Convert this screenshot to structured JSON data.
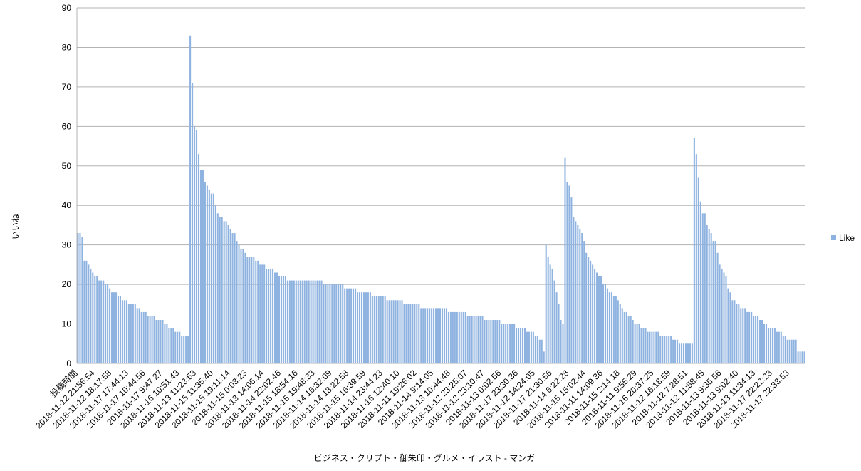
{
  "chart_data": {
    "type": "bar",
    "x_label": "ビジネス・クリプト・御朱印・グルメ・イラスト - マンガ",
    "y_label": "いいね",
    "legend": "right",
    "grid": true,
    "ylim": [
      0,
      90
    ],
    "yticks": [
      0,
      10,
      20,
      30,
      40,
      50,
      60,
      70,
      80,
      90
    ],
    "categories": [
      "投稿時間",
      null,
      null,
      null,
      null,
      null,
      null,
      null,
      "2018-11-12 21:56:54",
      null,
      null,
      null,
      null,
      null,
      null,
      null,
      "2018-11-12 18:17:58",
      null,
      null,
      null,
      null,
      null,
      null,
      null,
      "2018-11-17 17:44:13",
      null,
      null,
      null,
      null,
      null,
      null,
      null,
      "2018-11-17 10:44:56",
      null,
      null,
      null,
      null,
      null,
      null,
      null,
      "2018-11-17 9:47:27",
      null,
      null,
      null,
      null,
      null,
      null,
      null,
      "2018-11-16 10:51:43",
      null,
      null,
      null,
      null,
      null,
      null,
      null,
      "2018-11-13 11:23:53",
      null,
      null,
      null,
      null,
      null,
      null,
      null,
      "2018-11-15 11:35:40",
      null,
      null,
      null,
      null,
      null,
      null,
      null,
      "2018-11-15 19:11:14",
      null,
      null,
      null,
      null,
      null,
      null,
      null,
      "2018-11-15 0:03:23",
      null,
      null,
      null,
      null,
      null,
      null,
      null,
      "2018-11-13 14:06:14",
      null,
      null,
      null,
      null,
      null,
      null,
      null,
      "2018-11-14 22:02:46",
      null,
      null,
      null,
      null,
      null,
      null,
      null,
      "2018-11-15 18:54:16",
      null,
      null,
      null,
      null,
      null,
      null,
      null,
      "2018-11-15 19:48:33",
      null,
      null,
      null,
      null,
      null,
      null,
      null,
      "2018-11-14 16:32:09",
      null,
      null,
      null,
      null,
      null,
      null,
      null,
      "2018-11-14 18:22:58",
      null,
      null,
      null,
      null,
      null,
      null,
      null,
      "2018-11-15 16:39:59",
      null,
      null,
      null,
      null,
      null,
      null,
      null,
      "2018-11-14 23:44:23",
      null,
      null,
      null,
      null,
      null,
      null,
      null,
      "2018-11-16 12:40:10",
      null,
      null,
      null,
      null,
      null,
      null,
      null,
      "2018-11-11 19:26:02",
      null,
      null,
      null,
      null,
      null,
      null,
      null,
      "2018-11-14 9:14:05",
      null,
      null,
      null,
      null,
      null,
      null,
      null,
      "2018-11-13 10:44:48",
      null,
      null,
      null,
      null,
      null,
      null,
      null,
      "2018-11-12 23:25:07",
      null,
      null,
      null,
      null,
      null,
      null,
      null,
      "2018-11-12 23:10:47",
      null,
      null,
      null,
      null,
      null,
      null,
      null,
      "2018-11-13 0:02:56",
      null,
      null,
      null,
      null,
      null,
      null,
      null,
      "2018-11-17 23:30:36",
      null,
      null,
      null,
      null,
      null,
      null,
      null,
      "2018-11-12 14:24:05",
      null,
      null,
      null,
      null,
      null,
      null,
      null,
      "2018-11-17 21:30:56",
      null,
      null,
      null,
      null,
      null,
      null,
      null,
      "2018-11-14 6:22:28",
      null,
      null,
      null,
      null,
      null,
      null,
      null,
      "2018-11-15 15:02:44",
      null,
      null,
      null,
      null,
      null,
      null,
      null,
      "2018-11-11 14:09:36",
      null,
      null,
      null,
      null,
      null,
      null,
      null,
      "2018-11-15 2:14:18",
      null,
      null,
      null,
      null,
      null,
      null,
      null,
      "2018-11-11 9:55:29",
      null,
      null,
      null,
      null,
      null,
      null,
      null,
      "2018-11-16 20:37:25",
      null,
      null,
      null,
      null,
      null,
      null,
      null,
      "2018-11-12 16:18:59",
      null,
      null,
      null,
      null,
      null,
      null,
      null,
      "2018-11-12 7:28:51",
      null,
      null,
      null,
      null,
      null,
      null,
      null,
      "2018-11-12 11:58:45",
      null,
      null,
      null,
      null,
      null,
      null,
      null,
      "2018-11-13 9:35:56",
      null,
      null,
      null,
      null,
      null,
      null,
      null,
      "2018-11-13 9:02:40",
      null,
      null,
      null,
      null,
      null,
      null,
      null,
      "2018-11-13 11:34:13",
      null,
      null,
      null,
      null,
      null,
      null,
      null,
      "2018-11-17 22:22:23",
      null,
      null,
      null,
      null,
      null,
      null,
      null,
      "2018-11-17 22:33:53",
      null,
      null,
      null,
      null,
      null,
      null,
      null
    ],
    "series": [
      {
        "name": "Like",
        "color": "#8fb3e0",
        "values": [
          33,
          33,
          32,
          26,
          26,
          25,
          24,
          23,
          22,
          22,
          21,
          21,
          21,
          20,
          20,
          19,
          18,
          18,
          18,
          17,
          17,
          16,
          16,
          16,
          15,
          15,
          15,
          15,
          14,
          14,
          13,
          13,
          13,
          12,
          12,
          12,
          12,
          11,
          11,
          11,
          11,
          10,
          10,
          9,
          9,
          9,
          8,
          8,
          8,
          7,
          7,
          7,
          7,
          83,
          71,
          60,
          59,
          53,
          49,
          49,
          46,
          45,
          44,
          43,
          43,
          40,
          38,
          37,
          37,
          36,
          36,
          35,
          34,
          33,
          33,
          31,
          30,
          29,
          29,
          28,
          27,
          27,
          27,
          27,
          26,
          26,
          25,
          25,
          25,
          24,
          24,
          24,
          24,
          23,
          23,
          22,
          22,
          22,
          22,
          21,
          21,
          21,
          21,
          21,
          21,
          21,
          21,
          21,
          21,
          21,
          21,
          21,
          21,
          21,
          21,
          21,
          20,
          20,
          20,
          20,
          20,
          20,
          20,
          20,
          20,
          20,
          19,
          19,
          19,
          19,
          19,
          19,
          18,
          18,
          18,
          18,
          18,
          18,
          18,
          17,
          17,
          17,
          17,
          17,
          17,
          17,
          16,
          16,
          16,
          16,
          16,
          16,
          16,
          16,
          15,
          15,
          15,
          15,
          15,
          15,
          15,
          15,
          14,
          14,
          14,
          14,
          14,
          14,
          14,
          14,
          14,
          14,
          14,
          14,
          14,
          13,
          13,
          13,
          13,
          13,
          13,
          13,
          13,
          13,
          12,
          12,
          12,
          12,
          12,
          12,
          12,
          12,
          11,
          11,
          11,
          11,
          11,
          11,
          11,
          11,
          10,
          10,
          10,
          10,
          10,
          10,
          10,
          9,
          9,
          9,
          9,
          9,
          8,
          8,
          8,
          8,
          7,
          7,
          6,
          6,
          3,
          30,
          27,
          25,
          24,
          21,
          18,
          15,
          11,
          10,
          52,
          46,
          45,
          42,
          37,
          36,
          35,
          34,
          33,
          31,
          28,
          27,
          26,
          25,
          24,
          23,
          22,
          22,
          20,
          20,
          19,
          18,
          18,
          17,
          17,
          16,
          15,
          14,
          13,
          13,
          12,
          12,
          11,
          10,
          10,
          10,
          9,
          9,
          9,
          8,
          8,
          8,
          8,
          8,
          8,
          7,
          7,
          7,
          7,
          7,
          7,
          6,
          6,
          6,
          5,
          5,
          5,
          5,
          5,
          5,
          5,
          57,
          53,
          47,
          41,
          38,
          38,
          35,
          34,
          33,
          31,
          31,
          28,
          25,
          24,
          23,
          22,
          19,
          18,
          16,
          16,
          15,
          15,
          14,
          14,
          14,
          13,
          13,
          13,
          12,
          12,
          12,
          11,
          11,
          10,
          10,
          9,
          9,
          9,
          9,
          8,
          8,
          8,
          7,
          7,
          6,
          6,
          6,
          6,
          6,
          3,
          3,
          3,
          3
        ]
      }
    ]
  }
}
